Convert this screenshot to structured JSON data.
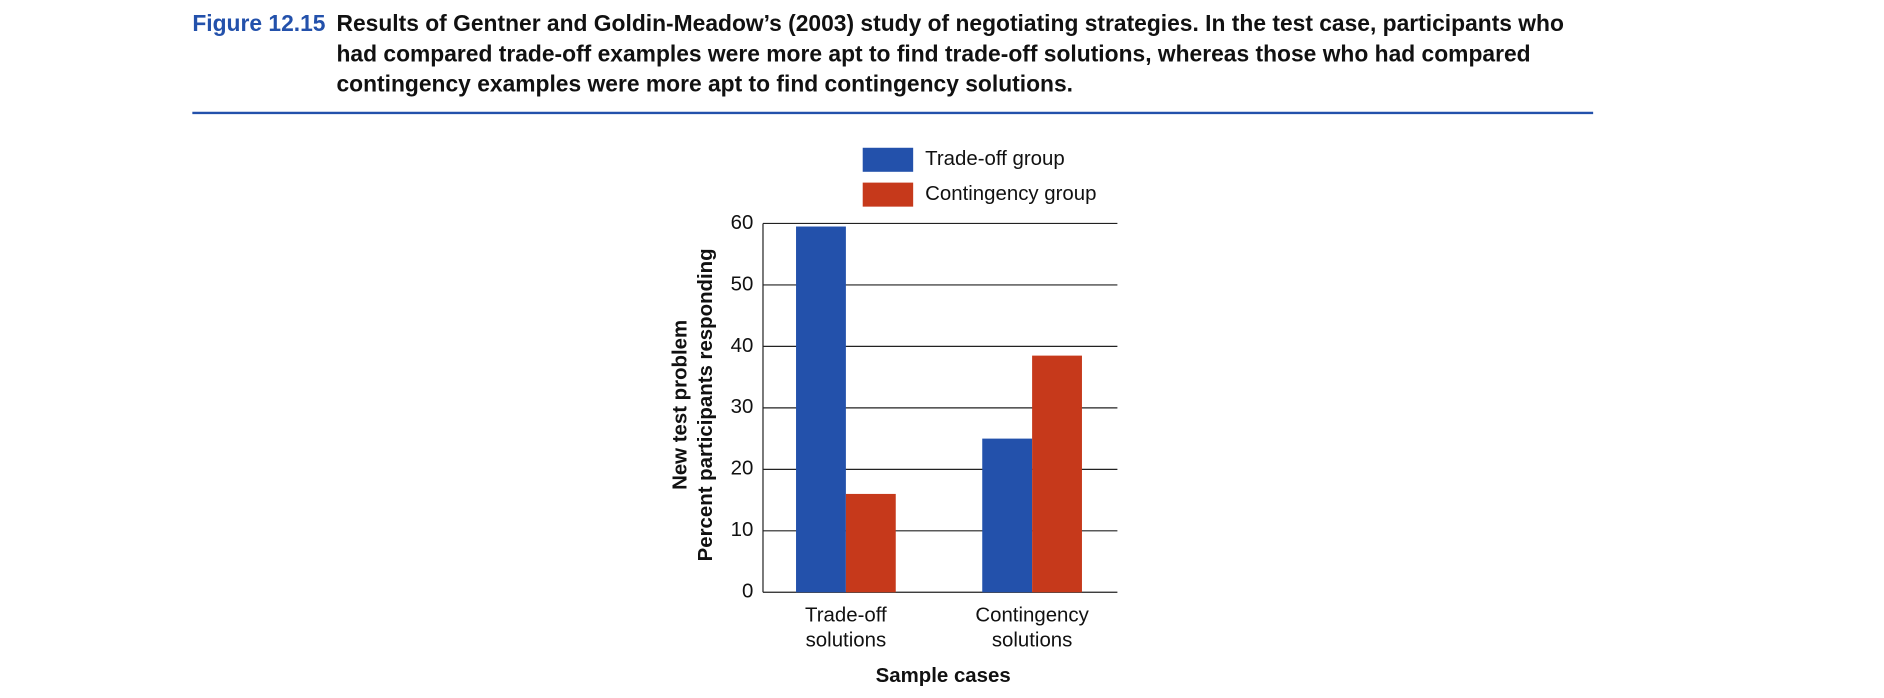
{
  "figure_label": "Figure 12.15",
  "caption_lines": [
    "Results of Gentner and Goldin-Meadow’s (2003) study of negotiating strategies. In the test case, participants who",
    "had compared trade-off examples were more apt to find trade-off solutions, whereas those who had compared",
    "contingency examples were more apt to find contingency solutions."
  ],
  "chart_data": {
    "type": "bar",
    "categories": [
      "Trade-off solutions",
      "Contingency solutions"
    ],
    "series": [
      {
        "name": "Trade-off group",
        "color": "#2351ab",
        "values": [
          59.5,
          25
        ]
      },
      {
        "name": "Contingency group",
        "color": "#c6391b",
        "values": [
          16,
          38.5
        ]
      }
    ],
    "x_label": "Sample cases",
    "y_label": [
      "New test problem",
      "Percent participants responding"
    ],
    "ylim": [
      0,
      60
    ],
    "yticks": [
      0,
      10,
      20,
      30,
      40,
      50,
      60
    ],
    "grid": true
  }
}
